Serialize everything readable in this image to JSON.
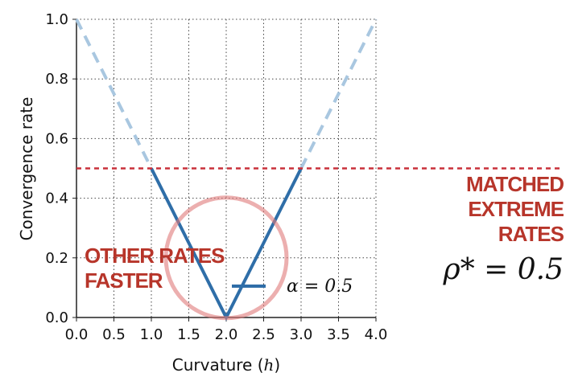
{
  "chart_data": {
    "type": "line",
    "xlabel": "Curvature",
    "xlabel_var": "h",
    "ylabel": "Convergence rate",
    "xlim": [
      0,
      4
    ],
    "ylim": [
      0,
      1
    ],
    "xticks": [
      "0.0",
      "0.5",
      "1.0",
      "1.5",
      "2.0",
      "2.5",
      "3.0",
      "3.5",
      "4.0"
    ],
    "yticks": [
      "0.0",
      "0.2",
      "0.4",
      "0.6",
      "0.8",
      "1.0"
    ],
    "grid": true,
    "legend": {
      "placement": "lower-right",
      "label": "α = 0.5"
    },
    "series": [
      {
        "name": "α = 0.5",
        "style": "solid",
        "color": "#2f6ea8",
        "x": [
          1.0,
          1.5,
          2.0,
          2.5,
          3.0
        ],
        "y": [
          0.5,
          0.25,
          0.0,
          0.25,
          0.5
        ]
      },
      {
        "style": "dashed",
        "color": "#a9c7e0",
        "x": [
          0.0,
          1.0
        ],
        "y": [
          1.0,
          0.5
        ]
      },
      {
        "style": "dashed",
        "color": "#a9c7e0",
        "x": [
          3.0,
          4.0
        ],
        "y": [
          0.5,
          1.0
        ]
      }
    ],
    "hline": {
      "y": 0.5,
      "style": "dashed",
      "color": "#c9303a"
    },
    "highlight_circle": {
      "cx": 2.0,
      "cy": 0.2,
      "color": "#e07a7a"
    },
    "annotations": {
      "other_rates": [
        "OTHER RATES",
        "FASTER"
      ],
      "matched": [
        "MATCHED",
        "EXTREME",
        "RATES"
      ],
      "rho": "ρ* = 0.5"
    }
  }
}
